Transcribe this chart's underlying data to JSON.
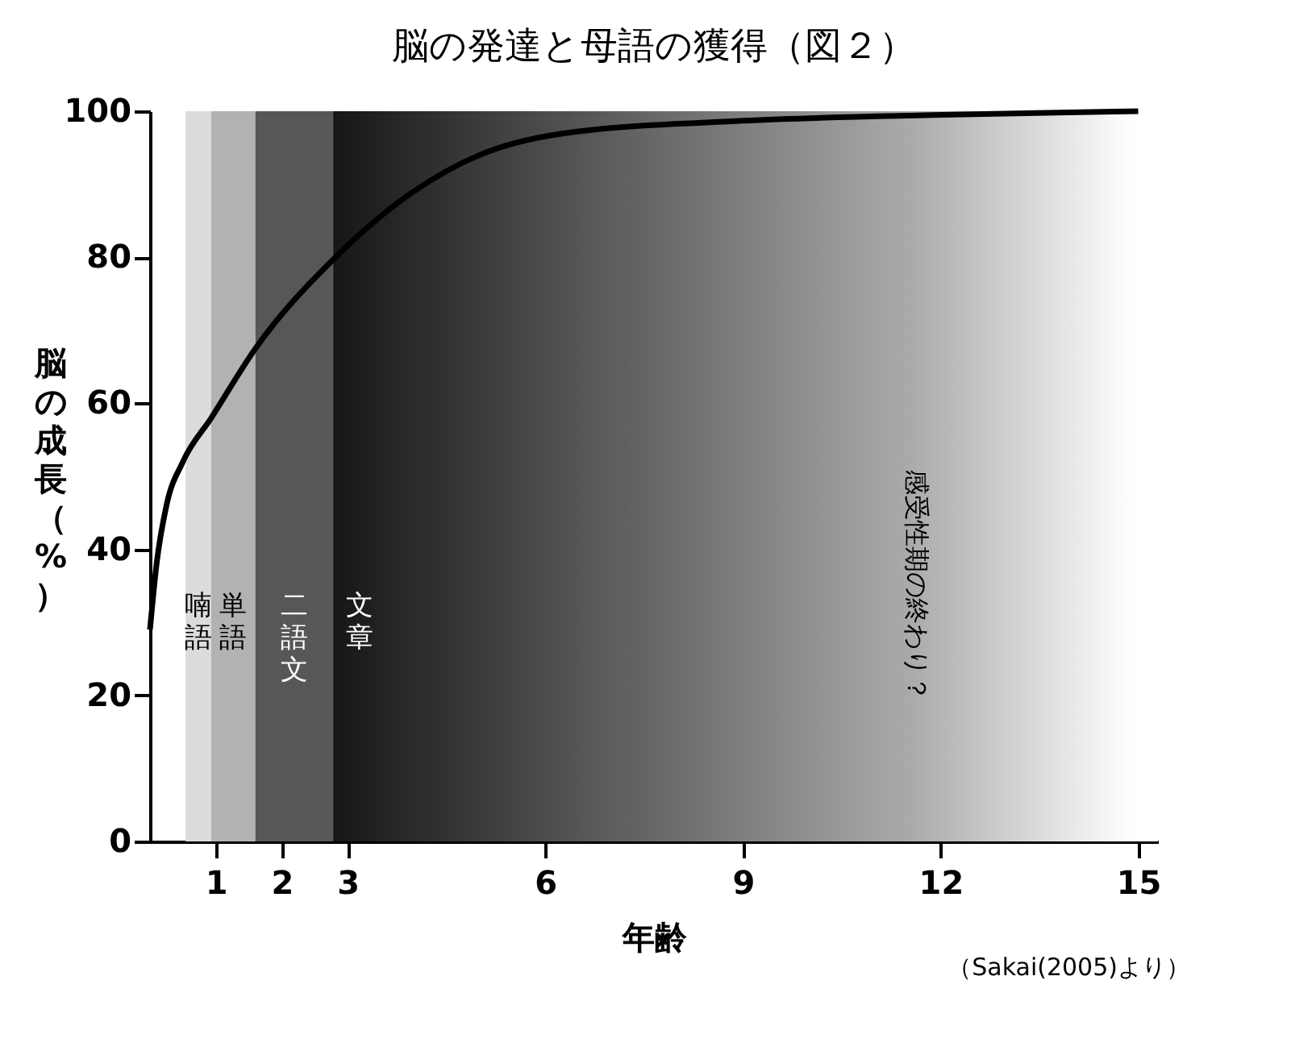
{
  "chart_data": {
    "type": "line",
    "title": "脳の発達と母語の獲得（図２）",
    "xlabel": "年齢",
    "ylabel": "脳の成長（%）",
    "x": [
      0,
      0.1,
      0.25,
      0.5,
      0.93,
      1.6,
      2.78,
      4,
      5,
      6.3,
      9,
      12,
      15
    ],
    "series": [
      {
        "color": "#000000",
        "values": [
          29,
          38,
          46,
          52,
          58,
          67.5,
          79.7,
          89,
          94,
          97,
          98.7,
          99.5,
          100
        ]
      }
    ],
    "xlim": [
      0,
      15.3
    ],
    "xticks": [
      1,
      2,
      3,
      6,
      9,
      12,
      15
    ],
    "ylim": [
      0,
      100
    ],
    "yticks": [
      0,
      20,
      40,
      60,
      80,
      100
    ],
    "grid": false,
    "marker": "none",
    "line_style": "solid",
    "bands": [
      {
        "axis": "x",
        "from": 0.54,
        "to": 0.93,
        "label": "喃語",
        "color": "#dcdcdc"
      },
      {
        "axis": "x",
        "from": 0.93,
        "to": 1.6,
        "label": "単語",
        "color": "#b2b2b2"
      },
      {
        "axis": "x",
        "from": 1.6,
        "to": 2.78,
        "label": "二語文",
        "color": "#575757"
      },
      {
        "axis": "x",
        "from": 2.78,
        "to": 15.3,
        "label": "文章",
        "color": "#161616"
      }
    ],
    "annotations": [
      "感受性期の終わり？",
      "（Sakai(2005)より）"
    ]
  }
}
